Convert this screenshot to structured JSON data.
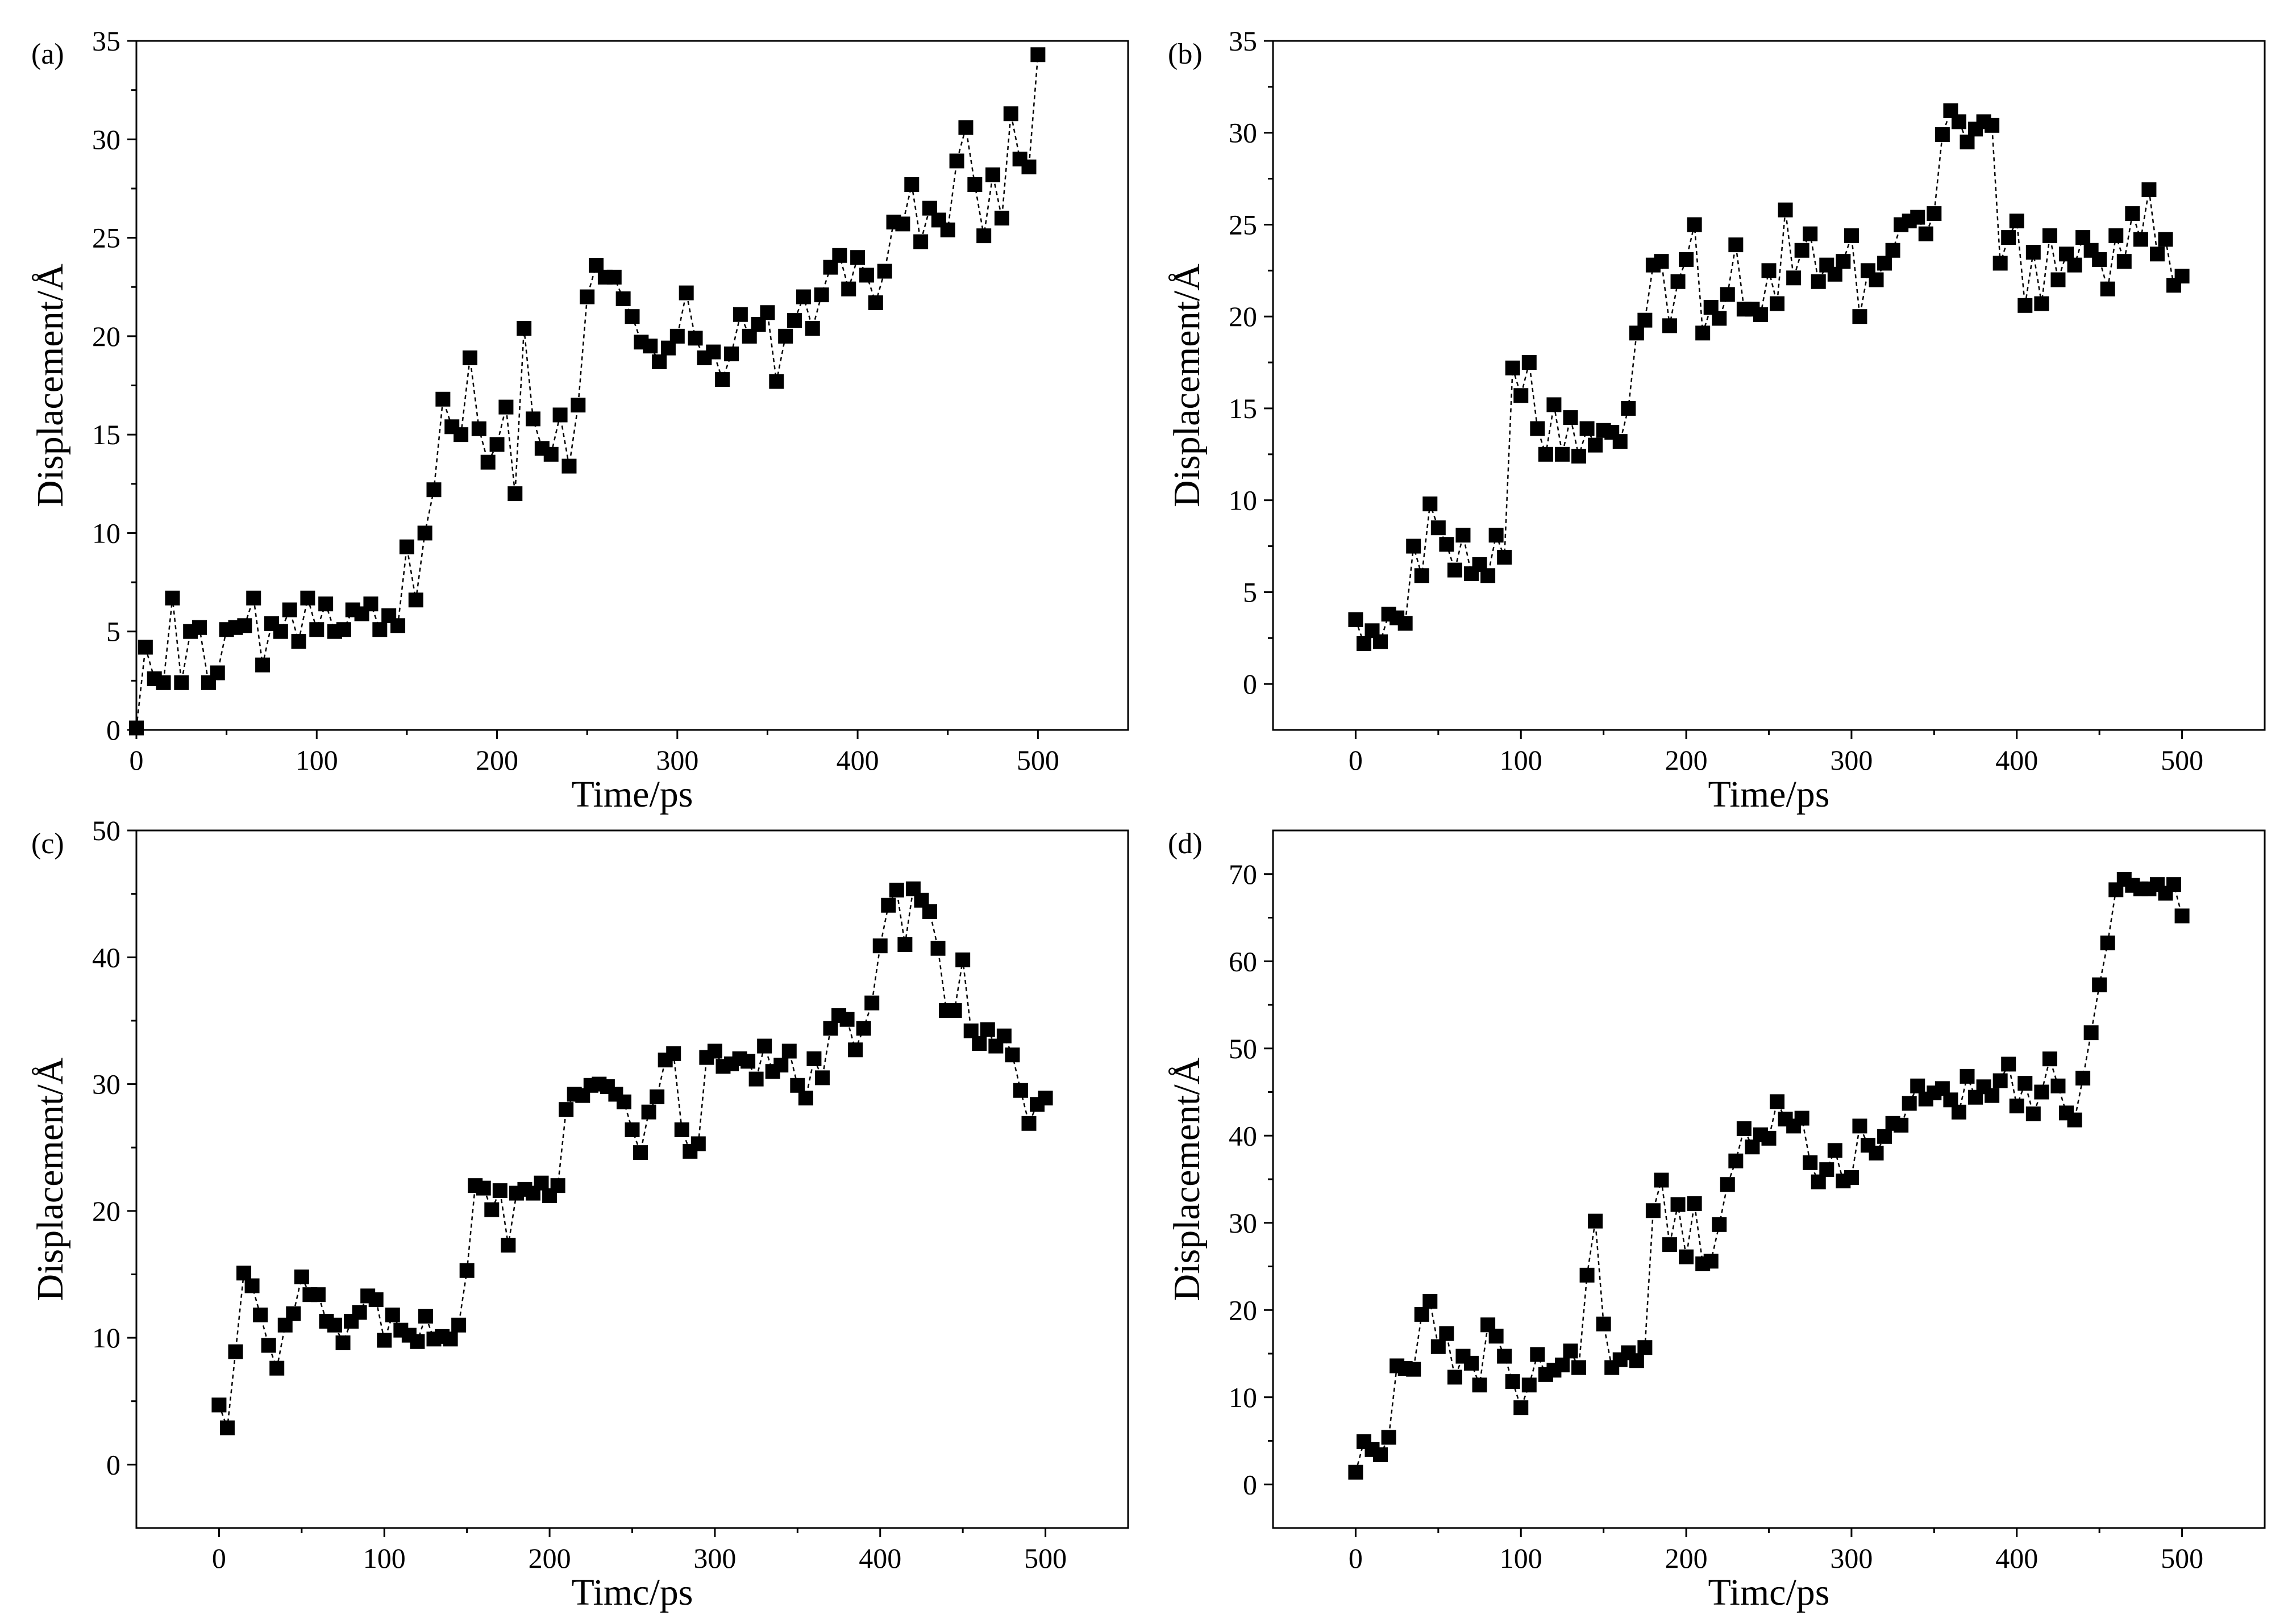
{
  "chart_data": [
    {
      "type": "scatter",
      "panel_label": "(a)",
      "xlabel": "Time/ps",
      "ylabel": "Displacement/Å",
      "xlim": [
        0,
        550
      ],
      "ylim": [
        0,
        35
      ],
      "xticks": [
        0,
        100,
        200,
        300,
        400,
        500
      ],
      "yticks": [
        0,
        5,
        10,
        15,
        20,
        25,
        30,
        35
      ],
      "marker": "square",
      "line": "dashed",
      "x": [
        0,
        5,
        10,
        15,
        20,
        25,
        30,
        35,
        40,
        45,
        50,
        55,
        60,
        65,
        70,
        75,
        80,
        85,
        90,
        95,
        100,
        105,
        110,
        115,
        120,
        125,
        130,
        135,
        140,
        145,
        150,
        155,
        160,
        165,
        170,
        175,
        180,
        185,
        190,
        195,
        200,
        205,
        210,
        215,
        220,
        225,
        230,
        235,
        240,
        245,
        250,
        255,
        260,
        265,
        270,
        275,
        280,
        285,
        290,
        295,
        300,
        305,
        310,
        315,
        320,
        325,
        330,
        335,
        340,
        345,
        350,
        355,
        360,
        365,
        370,
        375,
        380,
        385,
        390,
        395,
        400,
        405,
        410,
        415,
        420,
        425,
        430,
        435,
        440,
        445,
        450,
        455,
        460,
        465,
        470,
        475,
        480,
        485,
        490,
        495,
        500
      ],
      "y": [
        0.1,
        4.2,
        2.6,
        2.4,
        6.7,
        2.4,
        5.0,
        5.2,
        2.4,
        2.9,
        5.1,
        5.2,
        5.3,
        6.7,
        3.3,
        5.4,
        5.0,
        6.1,
        4.5,
        6.7,
        5.1,
        6.4,
        5.0,
        5.1,
        6.1,
        5.9,
        6.4,
        5.1,
        5.8,
        5.3,
        9.3,
        6.6,
        10.0,
        12.2,
        16.8,
        15.4,
        15.0,
        18.9,
        15.3,
        13.6,
        14.5,
        16.4,
        12.0,
        20.4,
        15.8,
        14.3,
        14.0,
        16.0,
        13.4,
        16.5,
        22.0,
        23.6,
        23.0,
        23.0,
        21.9,
        21.0,
        19.7,
        19.5,
        18.7,
        19.4,
        20.0,
        22.2,
        19.9,
        18.9,
        19.2,
        17.8,
        19.1,
        21.1,
        20.0,
        20.6,
        21.2,
        17.7,
        20.0,
        20.8,
        22.0,
        20.4,
        22.1,
        23.5,
        24.1,
        22.4,
        24.0,
        23.1,
        21.7,
        23.3,
        25.8,
        25.7,
        27.7,
        24.8,
        26.5,
        25.9,
        25.4,
        28.9,
        30.6,
        27.7,
        25.1,
        28.2,
        26.0,
        31.3,
        29.0,
        28.6,
        34.3
      ]
    },
    {
      "type": "scatter",
      "panel_label": "(b)",
      "xlabel": "Time/ps",
      "ylabel": "Displacement/Å",
      "xlim": [
        -50,
        550
      ],
      "ylim": [
        -2.5,
        35
      ],
      "xticks": [
        0,
        100,
        200,
        300,
        400,
        500
      ],
      "yticks": [
        0,
        5,
        10,
        15,
        20,
        25,
        30,
        35
      ],
      "marker": "square",
      "line": "dashed",
      "x": [
        0,
        5,
        10,
        15,
        20,
        25,
        30,
        35,
        40,
        45,
        50,
        55,
        60,
        65,
        70,
        75,
        80,
        85,
        90,
        95,
        100,
        105,
        110,
        115,
        120,
        125,
        130,
        135,
        140,
        145,
        150,
        155,
        160,
        165,
        170,
        175,
        180,
        185,
        190,
        195,
        200,
        205,
        210,
        215,
        220,
        225,
        230,
        235,
        240,
        245,
        250,
        255,
        260,
        265,
        270,
        275,
        280,
        285,
        290,
        295,
        300,
        305,
        310,
        315,
        320,
        325,
        330,
        335,
        340,
        345,
        350,
        355,
        360,
        365,
        370,
        375,
        380,
        385,
        390,
        395,
        400,
        405,
        410,
        415,
        420,
        425,
        430,
        435,
        440,
        445,
        450,
        455,
        460,
        465,
        470,
        475,
        480,
        485,
        490,
        495,
        500
      ],
      "y": [
        3.5,
        2.2,
        2.9,
        2.3,
        3.8,
        3.6,
        3.3,
        7.5,
        5.9,
        9.8,
        8.5,
        7.6,
        6.2,
        8.1,
        6.0,
        6.5,
        5.9,
        8.1,
        6.9,
        17.2,
        15.7,
        17.5,
        13.9,
        12.5,
        15.2,
        12.5,
        14.5,
        12.4,
        13.9,
        13.0,
        13.8,
        13.7,
        13.2,
        15.0,
        19.1,
        19.8,
        22.8,
        23.0,
        19.5,
        21.9,
        23.1,
        25.0,
        19.1,
        20.5,
        19.9,
        21.2,
        23.9,
        20.4,
        20.4,
        20.1,
        22.5,
        20.7,
        25.8,
        22.1,
        23.6,
        24.5,
        21.9,
        22.8,
        22.3,
        23.0,
        24.4,
        20.0,
        22.5,
        22.0,
        22.9,
        23.6,
        25.0,
        25.2,
        25.4,
        24.5,
        25.6,
        29.9,
        31.2,
        30.6,
        29.5,
        30.2,
        30.6,
        30.4,
        22.9,
        24.3,
        25.2,
        20.6,
        23.5,
        20.7,
        24.4,
        22.0,
        23.4,
        22.8,
        24.3,
        23.6,
        23.1,
        21.5,
        24.4,
        23.0,
        25.6,
        24.2,
        26.9,
        23.4,
        24.2,
        21.7,
        22.2
      ]
    },
    {
      "type": "scatter",
      "panel_label": "(c)",
      "xlabel": "Timc/ps",
      "ylabel": "Displacement/Å",
      "xlim": [
        -50,
        550
      ],
      "ylim": [
        -5,
        50
      ],
      "xticks": [
        0,
        100,
        200,
        300,
        400,
        500
      ],
      "yticks": [
        0,
        10,
        20,
        30,
        40,
        50
      ],
      "marker": "square",
      "line": "dashed",
      "x": [
        0,
        5,
        10,
        15,
        20,
        25,
        30,
        35,
        40,
        45,
        50,
        55,
        60,
        65,
        70,
        75,
        80,
        85,
        90,
        95,
        100,
        105,
        110,
        115,
        120,
        125,
        130,
        135,
        140,
        145,
        150,
        155,
        160,
        165,
        170,
        175,
        180,
        185,
        190,
        195,
        200,
        205,
        210,
        215,
        220,
        225,
        230,
        235,
        240,
        245,
        250,
        255,
        260,
        265,
        270,
        275,
        280,
        285,
        290,
        295,
        300,
        305,
        310,
        315,
        320,
        325,
        330,
        335,
        340,
        345,
        350,
        355,
        360,
        365,
        370,
        375,
        380,
        385,
        390,
        395,
        400,
        405,
        410,
        415,
        420,
        425,
        430,
        435,
        440,
        445,
        450,
        455,
        460,
        465,
        470,
        475,
        480,
        485,
        490,
        495,
        500
      ],
      "y": [
        4.7,
        2.9,
        8.9,
        15.1,
        14.1,
        11.8,
        9.4,
        7.6,
        11.0,
        11.9,
        14.8,
        13.4,
        13.4,
        11.3,
        11.0,
        9.6,
        11.3,
        12.0,
        13.3,
        13.0,
        9.8,
        11.8,
        10.6,
        10.2,
        9.7,
        11.7,
        9.9,
        10.1,
        9.9,
        11.0,
        15.3,
        22.0,
        21.8,
        20.1,
        21.6,
        17.3,
        21.4,
        21.7,
        21.4,
        22.2,
        21.2,
        22.0,
        28.0,
        29.2,
        29.1,
        29.9,
        30.0,
        29.8,
        29.2,
        28.6,
        26.4,
        24.6,
        27.8,
        29.0,
        31.9,
        32.4,
        26.4,
        24.7,
        25.3,
        32.1,
        32.6,
        31.4,
        31.6,
        32.0,
        31.8,
        30.4,
        33.0,
        31.0,
        31.5,
        32.6,
        29.9,
        28.9,
        32.0,
        30.5,
        34.4,
        35.4,
        35.1,
        32.7,
        34.4,
        36.4,
        40.9,
        44.1,
        45.3,
        41.0,
        45.4,
        44.5,
        43.6,
        40.7,
        35.8,
        35.8,
        39.8,
        34.2,
        33.2,
        34.3,
        33.0,
        33.8,
        32.3,
        29.5,
        26.9,
        28.4,
        28.9
      ]
    },
    {
      "type": "scatter",
      "panel_label": "(d)",
      "xlabel": "Timc/ps",
      "ylabel": "Displacement/Å",
      "xlim": [
        -50,
        550
      ],
      "ylim": [
        -5,
        75
      ],
      "xticks": [
        0,
        100,
        200,
        300,
        400,
        500
      ],
      "yticks": [
        0,
        10,
        20,
        30,
        40,
        50,
        60,
        70
      ],
      "marker": "square",
      "line": "dashed",
      "x": [
        0,
        5,
        10,
        15,
        20,
        25,
        30,
        35,
        40,
        45,
        50,
        55,
        60,
        65,
        70,
        75,
        80,
        85,
        90,
        95,
        100,
        105,
        110,
        115,
        120,
        125,
        130,
        135,
        140,
        145,
        150,
        155,
        160,
        165,
        170,
        175,
        180,
        185,
        190,
        195,
        200,
        205,
        210,
        215,
        220,
        225,
        230,
        235,
        240,
        245,
        250,
        255,
        260,
        265,
        270,
        275,
        280,
        285,
        290,
        295,
        300,
        305,
        310,
        315,
        320,
        325,
        330,
        335,
        340,
        345,
        350,
        355,
        360,
        365,
        370,
        375,
        380,
        385,
        390,
        395,
        400,
        405,
        410,
        415,
        420,
        425,
        430,
        435,
        440,
        445,
        450,
        455,
        460,
        465,
        470,
        475,
        480,
        485,
        490,
        495,
        500
      ],
      "y": [
        1.4,
        4.9,
        4.0,
        3.4,
        5.4,
        13.6,
        13.3,
        13.2,
        19.5,
        21.0,
        15.8,
        17.3,
        12.3,
        14.7,
        13.9,
        11.4,
        18.3,
        17.0,
        14.7,
        11.8,
        8.8,
        11.4,
        14.9,
        12.6,
        13.1,
        13.7,
        15.3,
        13.4,
        24.0,
        30.2,
        18.4,
        13.4,
        14.3,
        15.1,
        14.2,
        15.7,
        31.4,
        34.9,
        27.5,
        32.1,
        26.1,
        32.2,
        25.3,
        25.6,
        29.8,
        34.4,
        37.1,
        40.8,
        38.7,
        40.1,
        39.7,
        43.9,
        41.9,
        41.1,
        42.0,
        36.9,
        34.7,
        36.1,
        38.3,
        34.8,
        35.2,
        41.1,
        38.9,
        38.0,
        39.9,
        41.4,
        41.2,
        43.7,
        45.7,
        44.2,
        44.9,
        45.4,
        44.1,
        42.7,
        46.8,
        44.4,
        45.6,
        44.6,
        46.3,
        48.2,
        43.4,
        46.0,
        42.5,
        45.0,
        48.8,
        45.7,
        42.6,
        41.8,
        46.6,
        51.8,
        57.3,
        62.1,
        68.2,
        69.4,
        68.7,
        68.3,
        68.3,
        68.8,
        67.8,
        68.8,
        65.2
      ]
    }
  ]
}
